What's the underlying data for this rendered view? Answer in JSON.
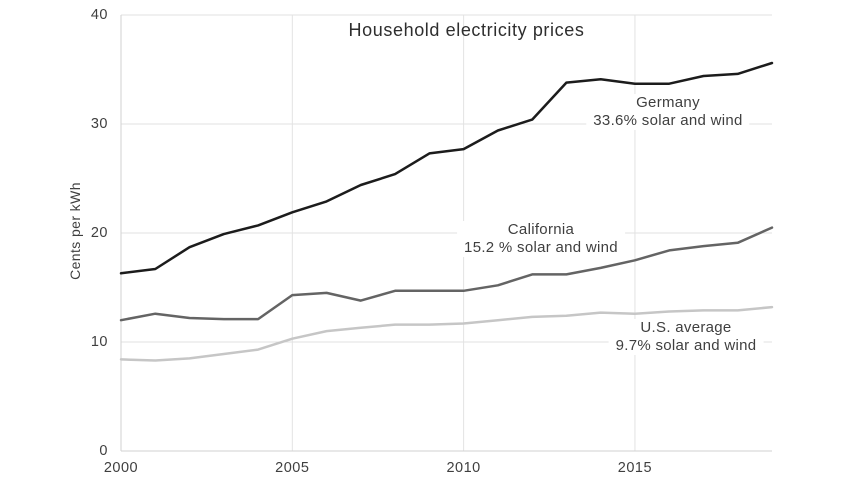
{
  "chart_data": {
    "type": "line",
    "title": "Household electricity prices",
    "ylabel": "Cents per kWh",
    "xlabel": "",
    "xlim": [
      2000,
      2019
    ],
    "ylim": [
      0,
      40
    ],
    "grid": true,
    "legend_position": "inline-annotations",
    "x": [
      2000,
      2001,
      2002,
      2003,
      2004,
      2005,
      2006,
      2007,
      2008,
      2009,
      2010,
      2011,
      2012,
      2013,
      2014,
      2015,
      2016,
      2017,
      2018,
      2019
    ],
    "x_ticks": [
      "2000",
      "2005",
      "2010",
      "2015"
    ],
    "y_ticks": [
      "40",
      "30",
      "20",
      "10",
      "0"
    ],
    "series": [
      {
        "name": "Germany",
        "annotation": [
          "Germany",
          "33.6% solar and wind"
        ],
        "color": "#1c1c1c",
        "values": [
          16.3,
          16.7,
          18.7,
          19.9,
          20.7,
          21.9,
          22.9,
          24.4,
          25.4,
          27.3,
          27.7,
          29.4,
          30.4,
          33.8,
          34.1,
          33.7,
          33.7,
          34.4,
          34.6,
          35.6
        ]
      },
      {
        "name": "California",
        "annotation": [
          "California",
          "15.2 % solar and wind"
        ],
        "color": "#646464",
        "values": [
          12.0,
          12.6,
          12.2,
          12.1,
          12.1,
          14.3,
          14.5,
          13.8,
          14.7,
          14.7,
          14.7,
          15.2,
          16.2,
          16.2,
          16.8,
          17.5,
          18.4,
          18.8,
          19.1,
          20.5
        ]
      },
      {
        "name": "U.S. average",
        "annotation": [
          "U.S. average",
          "9.7% solar and wind"
        ],
        "color": "#c6c6c6",
        "values": [
          8.4,
          8.3,
          8.5,
          8.9,
          9.3,
          10.3,
          11.0,
          11.3,
          11.6,
          11.6,
          11.7,
          12.0,
          12.3,
          12.4,
          12.7,
          12.6,
          12.8,
          12.9,
          12.9,
          13.2
        ]
      }
    ]
  },
  "colors": {
    "background": "#ffffff",
    "grid": "#e2e2e2",
    "axis": "#d2d2d2",
    "tick_text": "#3f3f3f",
    "title_text": "#2e2e2e",
    "germany_line": "#1c1c1c",
    "california_line": "#646464",
    "us_average_line": "#c6c6c6"
  }
}
